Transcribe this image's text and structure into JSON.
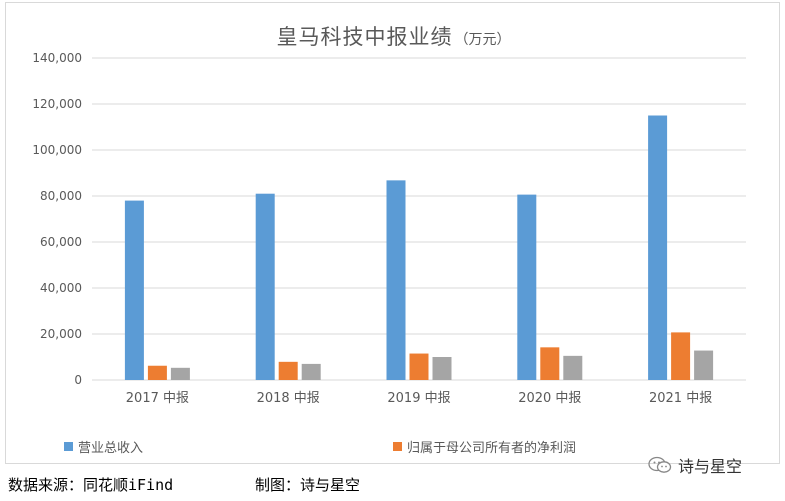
{
  "title": {
    "main": "皇马科技中报业绩",
    "unit": "（万元）"
  },
  "colors": {
    "series1": "#5b9bd5",
    "series2": "#ed7d31",
    "series3": "#a5a5a5"
  },
  "chart_data": {
    "type": "bar",
    "title": "皇马科技中报业绩（万元）",
    "categories": [
      "2017 中报",
      "2018 中报",
      "2019 中报",
      "2020 中报",
      "2021 中报"
    ],
    "series": [
      {
        "name": "营业总收入",
        "values": [
          78000,
          81000,
          86800,
          80600,
          115000
        ]
      },
      {
        "name": "归属于母公司所有者的净利润",
        "values": [
          6200,
          7900,
          11500,
          14200,
          20700
        ]
      },
      {
        "values": [
          5300,
          7000,
          10000,
          10500,
          12800
        ]
      }
    ],
    "ylim": [
      0,
      140000
    ],
    "yticks": [
      "0",
      "20,000",
      "40,000",
      "60,000",
      "80,000",
      "100,000",
      "120,000",
      "140,000"
    ],
    "grid": true,
    "legend": "bottom"
  },
  "footer": {
    "source": "数据来源：同花顺iFind",
    "credit": "制图：诗与星空",
    "brand": "诗与星空"
  }
}
